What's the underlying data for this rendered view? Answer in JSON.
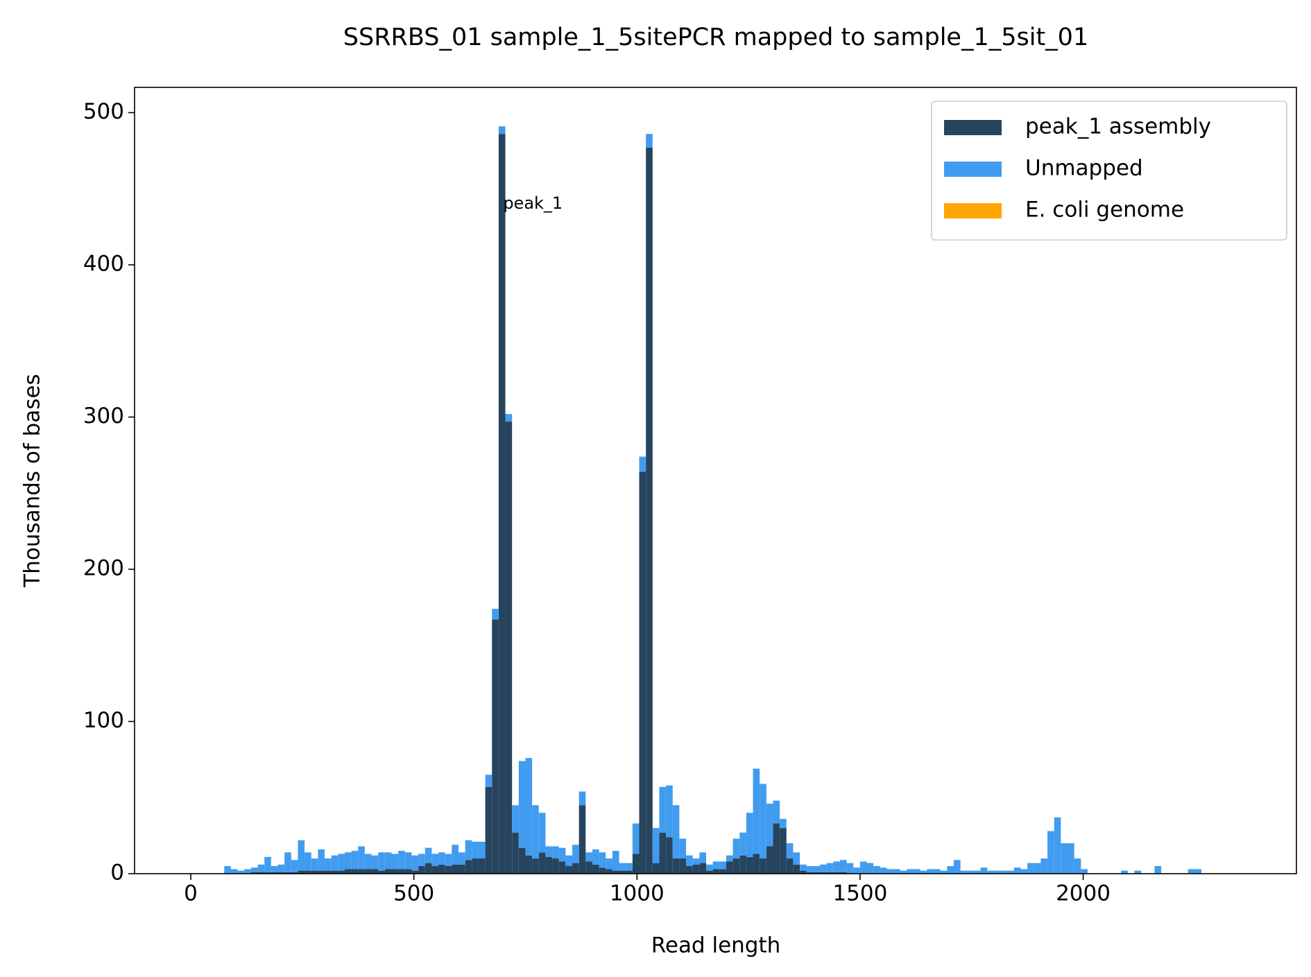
{
  "chart_data": {
    "type": "histogram",
    "title": "SSRRBS_01 sample_1_5sitePCR mapped to sample_1_5sit_01",
    "x_label": "Read length",
    "y_label": "Thousands of bases",
    "stacked": true,
    "bins": [
      75,
      90,
      105,
      120,
      135,
      150,
      165,
      180,
      195,
      210,
      225,
      240,
      255,
      270,
      285,
      300,
      315,
      330,
      345,
      360,
      375,
      390,
      405,
      420,
      435,
      450,
      465,
      480,
      495,
      510,
      525,
      540,
      555,
      570,
      585,
      600,
      615,
      630,
      645,
      660,
      675,
      690,
      705,
      720,
      735,
      750,
      765,
      780,
      795,
      810,
      825,
      840,
      855,
      870,
      885,
      900,
      915,
      930,
      945,
      960,
      975,
      990,
      1005,
      1020,
      1035,
      1050,
      1065,
      1080,
      1095,
      1110,
      1125,
      1140,
      1155,
      1170,
      1185,
      1200,
      1215,
      1230,
      1245,
      1260,
      1275,
      1290,
      1305,
      1320,
      1335,
      1350,
      1365,
      1380,
      1395,
      1410,
      1425,
      1440,
      1455,
      1470,
      1485,
      1500,
      1515,
      1530,
      1545,
      1560,
      1575,
      1590,
      1605,
      1620,
      1635,
      1650,
      1665,
      1680,
      1695,
      1710,
      1725,
      1740,
      1755,
      1770,
      1785,
      1800,
      1815,
      1830,
      1845,
      1860,
      1875,
      1890,
      1905,
      1920,
      1935,
      1950,
      1965,
      1980,
      1995,
      2010,
      2025,
      2040,
      2055,
      2070,
      2085,
      2100,
      2115,
      2130,
      2145,
      2160,
      2175,
      2190,
      2205,
      2220,
      2235,
      2250,
      2265
    ],
    "series": [
      {
        "name": "peak_1 assembly",
        "color": "#27445e",
        "values": [
          0,
          0,
          0,
          0,
          1,
          1,
          1,
          1,
          1,
          1,
          1,
          2,
          2,
          2,
          2,
          2,
          2,
          2,
          3,
          3,
          3,
          3,
          3,
          2,
          3,
          3,
          3,
          3,
          2,
          5,
          7,
          5,
          6,
          5,
          6,
          6,
          9,
          10,
          10,
          57,
          167,
          486,
          297,
          27,
          17,
          12,
          10,
          14,
          11,
          10,
          8,
          5,
          7,
          45,
          8,
          6,
          4,
          3,
          2,
          2,
          2,
          13,
          264,
          477,
          7,
          27,
          24,
          10,
          10,
          5,
          6,
          7,
          2,
          3,
          3,
          8,
          10,
          12,
          11,
          13,
          10,
          18,
          33,
          30,
          10,
          6,
          2,
          1,
          1,
          1,
          1,
          1,
          1,
          0,
          0,
          0,
          0,
          0,
          0,
          0,
          0,
          0,
          0,
          0,
          0,
          0,
          0,
          0,
          0,
          0,
          0,
          0,
          0,
          0,
          0,
          0,
          0,
          0,
          0,
          0,
          0,
          0,
          0,
          0,
          0,
          0,
          0,
          0,
          0,
          0,
          0,
          0,
          0,
          0,
          0,
          0,
          0,
          0,
          0,
          0,
          0,
          0,
          0,
          0,
          0,
          0
        ]
      },
      {
        "name": "Unmapped",
        "color": "#419cf0",
        "values": [
          5,
          3,
          2,
          3,
          3,
          5,
          10,
          4,
          5,
          13,
          8,
          20,
          12,
          8,
          14,
          8,
          10,
          11,
          11,
          12,
          15,
          10,
          9,
          12,
          11,
          10,
          12,
          11,
          10,
          8,
          10,
          8,
          8,
          8,
          13,
          8,
          13,
          11,
          11,
          8,
          7,
          5,
          5,
          18,
          57,
          64,
          35,
          26,
          7,
          8,
          9,
          7,
          12,
          9,
          6,
          10,
          10,
          7,
          13,
          5,
          5,
          20,
          10,
          9,
          23,
          30,
          34,
          35,
          13,
          7,
          4,
          7,
          4,
          5,
          5,
          4,
          13,
          15,
          29,
          56,
          49,
          28,
          15,
          6,
          10,
          8,
          4,
          4,
          4,
          5,
          6,
          7,
          8,
          7,
          4,
          8,
          7,
          5,
          4,
          3,
          3,
          2,
          3,
          3,
          2,
          3,
          3,
          2,
          5,
          9,
          2,
          2,
          2,
          4,
          2,
          2,
          2,
          2,
          4,
          3,
          7,
          7,
          10,
          28,
          37,
          20,
          20,
          10,
          3,
          0,
          0,
          0,
          0,
          0,
          2,
          0,
          2,
          0,
          0,
          5,
          0,
          0,
          0,
          0,
          3,
          3
        ]
      },
      {
        "name": "E. coli genome",
        "color": "#ffa500",
        "values": [
          0,
          0,
          0,
          0,
          0,
          0,
          0,
          0,
          0,
          0,
          0,
          0,
          0,
          0,
          0,
          0,
          0,
          0,
          0,
          0,
          0,
          0,
          0,
          0,
          0,
          0,
          0,
          0,
          0,
          0,
          0,
          0,
          0,
          0,
          0,
          0,
          0,
          0,
          0,
          0,
          0,
          0,
          0,
          0,
          0,
          0,
          0,
          0,
          0,
          0,
          0,
          0,
          0,
          0,
          0,
          0,
          0,
          0,
          0,
          0,
          0,
          0,
          0,
          0,
          0,
          0,
          0,
          0,
          0,
          0,
          0,
          0,
          0,
          0,
          0,
          0,
          0,
          0,
          0,
          0,
          0,
          0,
          0,
          0,
          0,
          0,
          0,
          0,
          0,
          0,
          0,
          0,
          0,
          0,
          0,
          0,
          0,
          0,
          0,
          0,
          0,
          0,
          0,
          0,
          0,
          0,
          0,
          0,
          0,
          0,
          0,
          0,
          0,
          0,
          0,
          0,
          0,
          0,
          0,
          0,
          0,
          0,
          0,
          0,
          0,
          0,
          0,
          0,
          0,
          0,
          0,
          0,
          0,
          0,
          0,
          0,
          0,
          0,
          0,
          0,
          0,
          0,
          0,
          0,
          0,
          0
        ]
      }
    ],
    "annotations": [
      {
        "text": "peak_1",
        "x": 700,
        "y": 440
      }
    ],
    "xlim": [
      -126,
      2478
    ],
    "ylim": [
      0,
      516.6
    ],
    "xticks": [
      0,
      500,
      1000,
      1500,
      2000
    ],
    "yticks": [
      0,
      100,
      200,
      300,
      400,
      500
    ],
    "legend": "upper right"
  }
}
